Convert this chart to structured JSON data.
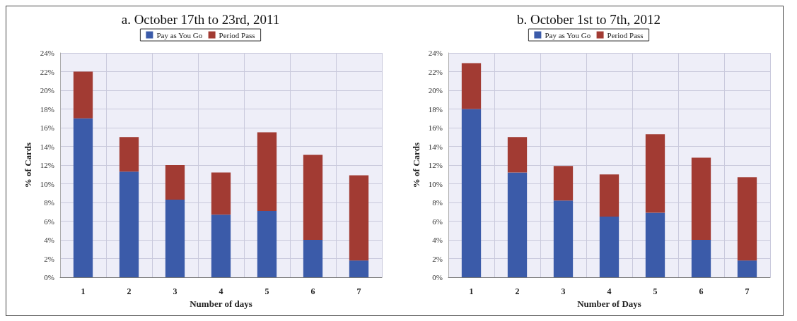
{
  "chart_data": [
    {
      "type": "bar",
      "title": "a. October 17th to 23rd, 2011",
      "xlabel": "Number of days",
      "ylabel": "% of Cards",
      "categories": [
        "1",
        "2",
        "3",
        "4",
        "5",
        "6",
        "7"
      ],
      "stacked": true,
      "series": [
        {
          "name": "Pay as You Go",
          "color": "#3b5ba9",
          "values": [
            17,
            11.3,
            8.3,
            6.7,
            7.1,
            4.0,
            1.8
          ]
        },
        {
          "name": "Period Pass",
          "color": "#a23b33",
          "values": [
            5,
            3.7,
            3.7,
            4.5,
            8.4,
            9.1,
            9.1
          ]
        }
      ],
      "ylim": [
        0,
        24
      ],
      "yticks": [
        {
          "value": 0,
          "label": "0%"
        },
        {
          "value": 2,
          "label": "2%"
        },
        {
          "value": 4,
          "label": "4%"
        },
        {
          "value": 6,
          "label": "6%"
        },
        {
          "value": 8,
          "label": "8%"
        },
        {
          "value": 10,
          "label": "10%"
        },
        {
          "value": 12,
          "label": "12%"
        },
        {
          "value": 14,
          "label": "14%"
        },
        {
          "value": 16,
          "label": "16%"
        },
        {
          "value": 18,
          "label": "18%"
        },
        {
          "value": 20,
          "label": "20%"
        },
        {
          "value": 22,
          "label": "22%"
        },
        {
          "value": 24,
          "label": "24%"
        }
      ],
      "grid": true,
      "legend": "top"
    },
    {
      "type": "bar",
      "title": "b. October 1st to 7th, 2012",
      "xlabel": "Number of Days",
      "ylabel": "% of Cards",
      "categories": [
        "1",
        "2",
        "3",
        "4",
        "5",
        "6",
        "7"
      ],
      "stacked": true,
      "series": [
        {
          "name": "Pay as You Go",
          "color": "#3b5ba9",
          "values": [
            18,
            11.2,
            8.2,
            6.5,
            6.9,
            4.0,
            1.8
          ]
        },
        {
          "name": "Period Pass",
          "color": "#a23b33",
          "values": [
            4.9,
            3.8,
            3.7,
            4.5,
            8.4,
            8.8,
            8.9
          ]
        }
      ],
      "ylim": [
        0,
        24
      ],
      "yticks": [
        {
          "value": 0,
          "label": "0%"
        },
        {
          "value": 2,
          "label": "2%"
        },
        {
          "value": 4,
          "label": "4%"
        },
        {
          "value": 6,
          "label": "6%"
        },
        {
          "value": 8,
          "label": "8%"
        },
        {
          "value": 10,
          "label": "10%"
        },
        {
          "value": 12,
          "label": "12%"
        },
        {
          "value": 14,
          "label": "14%"
        },
        {
          "value": 16,
          "label": "16%"
        },
        {
          "value": 18,
          "label": "18%"
        },
        {
          "value": 20,
          "label": "20%"
        },
        {
          "value": 22,
          "label": "22%"
        },
        {
          "value": 24,
          "label": "24%"
        }
      ],
      "grid": true,
      "legend": "top"
    }
  ]
}
